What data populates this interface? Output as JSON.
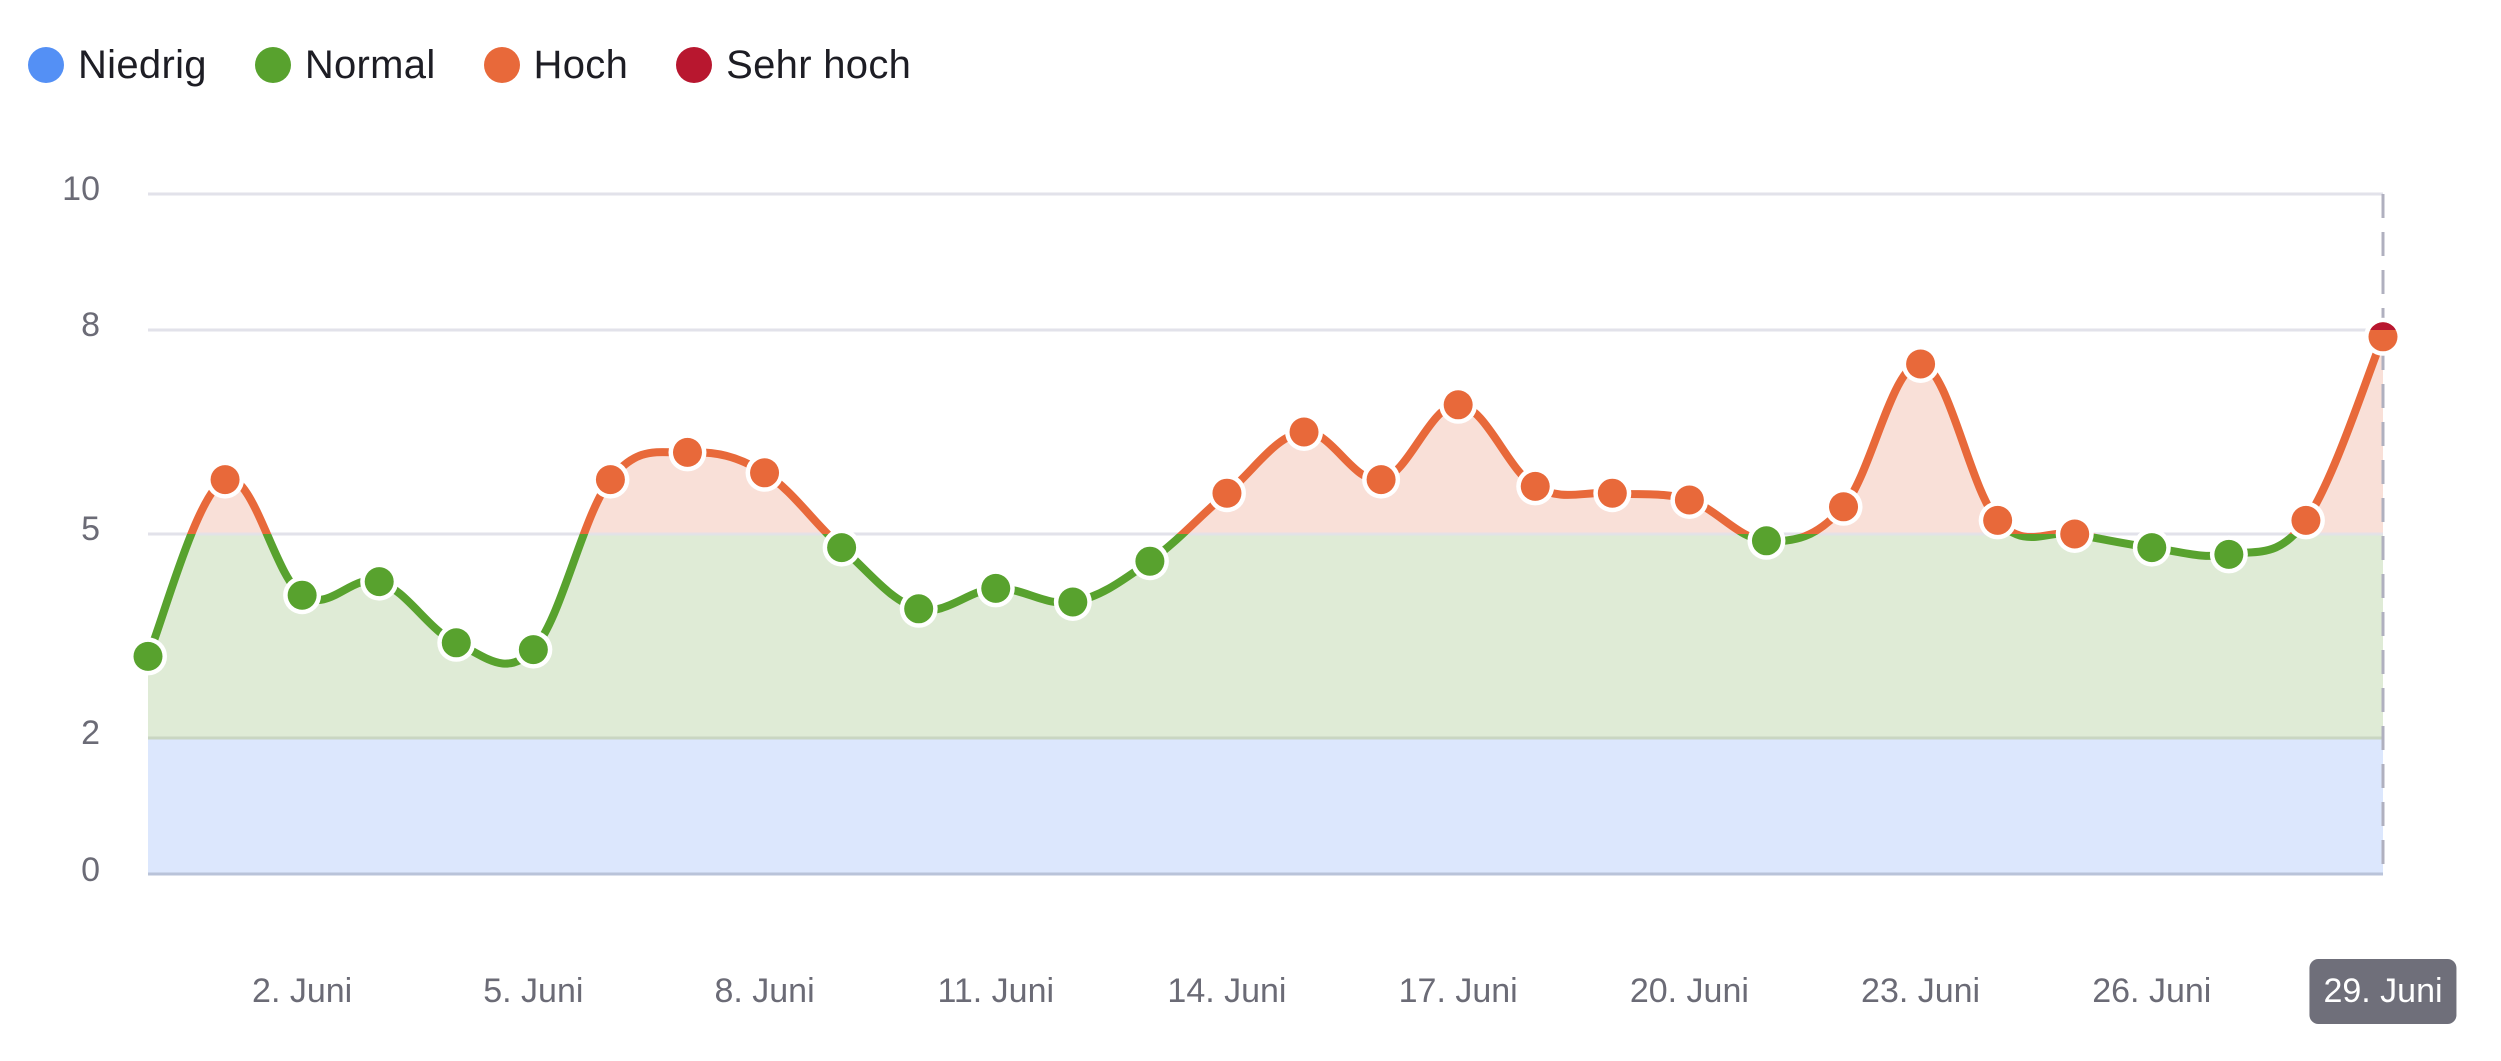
{
  "legend": [
    {
      "label": "Niedrig",
      "color": "#5490f5"
    },
    {
      "label": "Normal",
      "color": "#58a22e"
    },
    {
      "label": "Hoch",
      "color": "#e8693a"
    },
    {
      "label": "Sehr hoch",
      "color": "#b8172f"
    }
  ],
  "y_ticks": [
    "10",
    "8",
    "5",
    "2",
    "0"
  ],
  "x_ticks": [
    "2. Juni",
    "5. Juni",
    "8. Juni",
    "11. Juni",
    "14. Juni",
    "17. Juni",
    "20. Juni",
    "23. Juni",
    "26. Juni",
    "29. Juni"
  ],
  "active_x_tick": "29. Juni",
  "colors": {
    "band_low": "#dce7fd",
    "band_normal": "#dfebd6",
    "band_high": "#f9e0d8",
    "gridline": "#e2e2ea",
    "crosshair": "#b0b0bf",
    "axis_line": "#b9c3d9"
  },
  "chart_data": {
    "type": "area",
    "title": "",
    "xlabel": "",
    "ylabel": "",
    "ylim": [
      0,
      10
    ],
    "y_tick_values": [
      0,
      2,
      5,
      8,
      10
    ],
    "grid": true,
    "legend_position": "top-left",
    "thresholds": [
      {
        "name": "Niedrig",
        "from": 0,
        "to": 2,
        "color": "#5490f5"
      },
      {
        "name": "Normal",
        "from": 2,
        "to": 5,
        "color": "#58a22e"
      },
      {
        "name": "Hoch",
        "from": 5,
        "to": 8,
        "color": "#e8693a"
      },
      {
        "name": "Sehr hoch",
        "from": 8,
        "to": 10,
        "color": "#b8172f"
      }
    ],
    "x": [
      "31. Mai",
      "1. Juni",
      "2. Juni",
      "3. Juni",
      "4. Juni",
      "5. Juni",
      "6. Juni",
      "7. Juni",
      "8. Juni",
      "9. Juni",
      "10. Juni",
      "11. Juni",
      "12. Juni",
      "13. Juni",
      "14. Juni",
      "15. Juni",
      "16. Juni",
      "17. Juni",
      "18. Juni",
      "19. Juni",
      "20. Juni",
      "21. Juni",
      "22. Juni",
      "23. Juni",
      "24. Juni",
      "25. Juni",
      "26. Juni",
      "27. Juni",
      "28. Juni",
      "29. Juni"
    ],
    "series": [
      {
        "name": "Wert",
        "values": [
          3.2,
          5.8,
          4.1,
          4.3,
          3.4,
          3.3,
          5.8,
          6.2,
          5.9,
          4.8,
          3.9,
          4.2,
          4.0,
          4.6,
          5.6,
          6.5,
          5.8,
          6.9,
          5.7,
          5.6,
          5.5,
          4.9,
          5.4,
          7.5,
          5.2,
          5.0,
          4.8,
          4.7,
          5.2,
          7.9
        ]
      }
    ],
    "x_tick_labels": [
      "2. Juni",
      "5. Juni",
      "8. Juni",
      "11. Juni",
      "14. Juni",
      "17. Juni",
      "20. Juni",
      "23. Juni",
      "26. Juni",
      "29. Juni"
    ]
  }
}
